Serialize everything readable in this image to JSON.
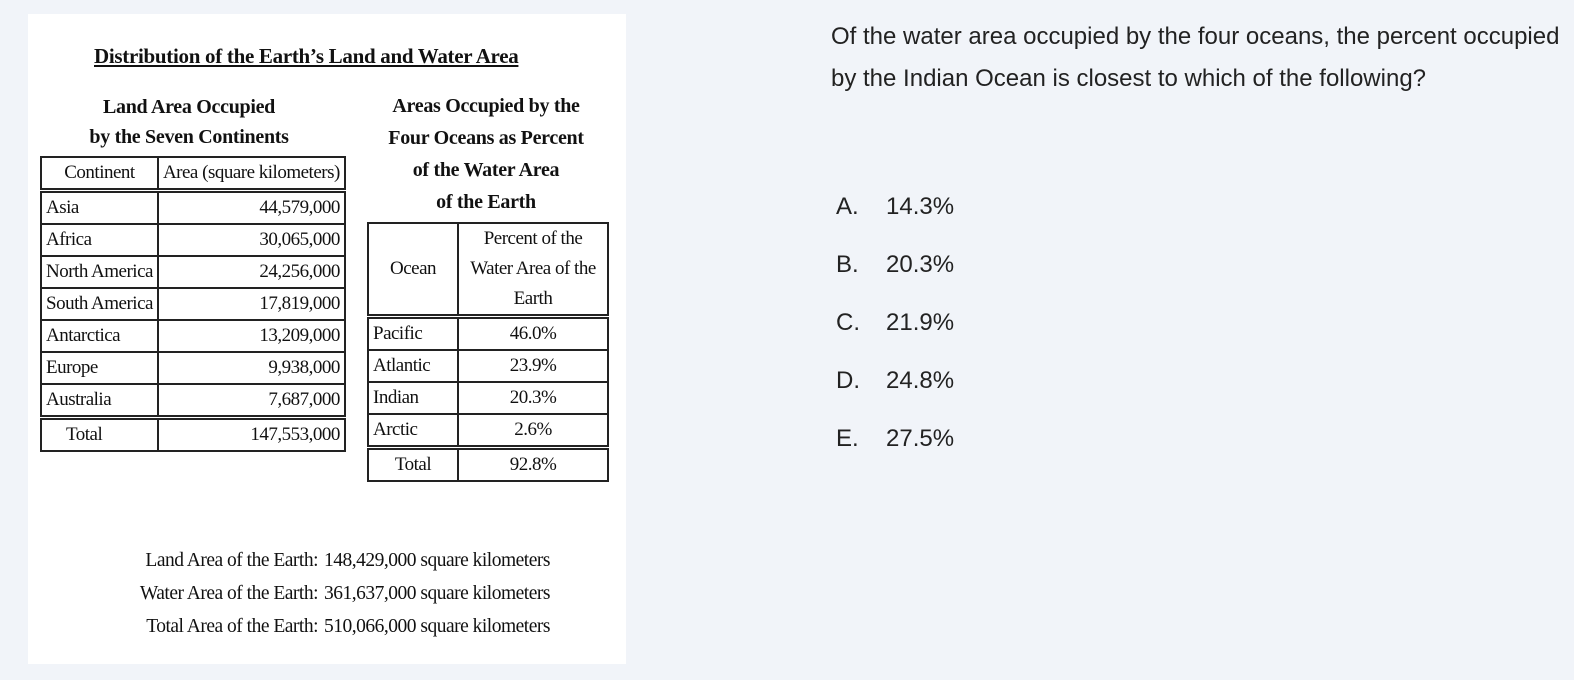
{
  "figure": {
    "title": "Distribution of the Earth’s Land and Water Area",
    "land_heading_line1": "Land Area Occupied",
    "land_heading_line2": "by the Seven Continents",
    "ocean_heading_line1": "Areas Occupied by the",
    "ocean_heading_line2": "Four Oceans as Percent",
    "ocean_heading_line3": "of the Water Area",
    "ocean_heading_line4": "of the Earth",
    "land_table": {
      "headers": [
        "Continent",
        "Area (square kilometers)"
      ],
      "rows": [
        [
          "Asia",
          "44,579,000"
        ],
        [
          "Africa",
          "30,065,000"
        ],
        [
          "North America",
          "24,256,000"
        ],
        [
          "South America",
          "17,819,000"
        ],
        [
          "Antarctica",
          "13,209,000"
        ],
        [
          "Europe",
          "9,938,000"
        ],
        [
          "Australia",
          "7,687,000"
        ]
      ],
      "total": [
        "Total",
        "147,553,000"
      ]
    },
    "ocean_table": {
      "headers": [
        "Ocean",
        "Percent of the Water Area of the Earth"
      ],
      "rows": [
        [
          "Pacific",
          "46.0%"
        ],
        [
          "Atlantic",
          "23.9%"
        ],
        [
          "Indian",
          "20.3%"
        ],
        [
          "Arctic",
          "2.6%"
        ]
      ],
      "total": [
        "Total",
        "92.8%"
      ]
    },
    "footnotes": [
      {
        "label": "Land Area of the Earth:",
        "value": "148,429,000 square kilometers"
      },
      {
        "label": "Water Area of the Earth:",
        "value": "361,637,000 square kilometers"
      },
      {
        "label": "Total Area of the Earth:",
        "value": "510,066,000 square kilometers"
      }
    ]
  },
  "question": {
    "text": "Of the water area occupied by the four oceans, the percent occupied by the Indian Ocean is closest to which of the following?",
    "choices": [
      {
        "letter": "A.",
        "text": "14.3%"
      },
      {
        "letter": "B.",
        "text": "20.3%"
      },
      {
        "letter": "C.",
        "text": "21.9%"
      },
      {
        "letter": "D.",
        "text": "24.8%"
      },
      {
        "letter": "E.",
        "text": "27.5%"
      }
    ]
  }
}
